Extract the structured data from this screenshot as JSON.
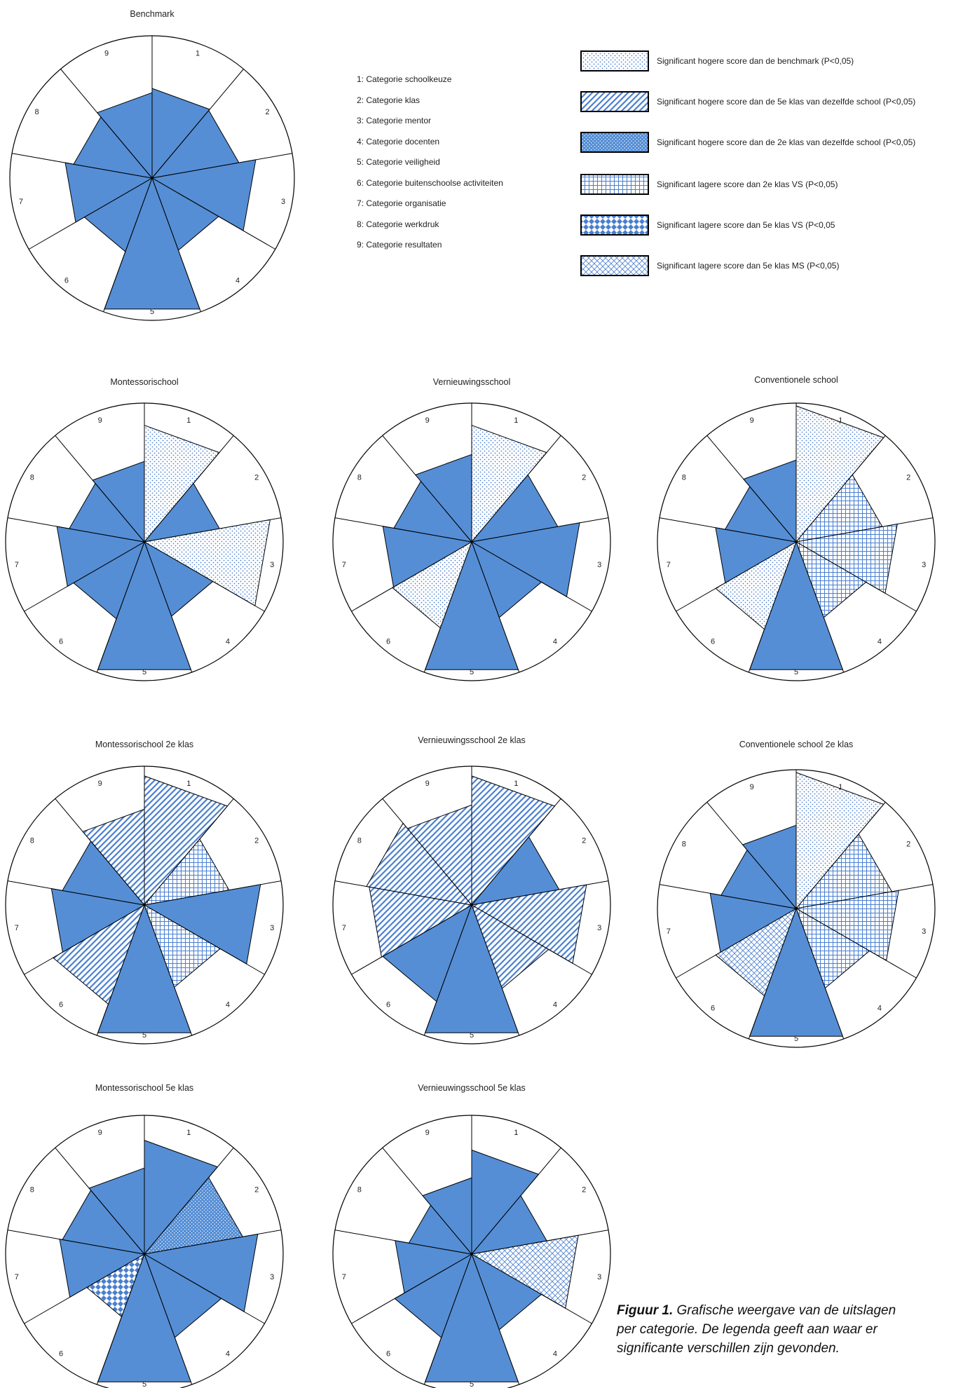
{
  "categories_legend": [
    "1: Categorie schoolkeuze",
    "2: Categorie klas",
    "3: Categorie mentor",
    "4: Categorie docenten",
    "5: Categorie veiligheid",
    "6: Categorie buitenschoolse activiteiten",
    "7: Categorie organisatie",
    "8: Categorie werkdruk",
    "9: Categorie resultaten"
  ],
  "pattern_legend": [
    {
      "pattern": "dots",
      "text": "Significant hogere score dan de benchmark (P<0,05)"
    },
    {
      "pattern": "diag",
      "text": "Significant hogere score dan de 5e klas van dezelfde school (P<0,05)"
    },
    {
      "pattern": "bigdots",
      "text": "Significant hogere score dan de 2e klas van dezelfde school (P<0,05)"
    },
    {
      "pattern": "grid",
      "text": "Significant lagere score dan 2e klas VS (P<0,05)"
    },
    {
      "pattern": "check",
      "text": "Significant lagere score dan 5e klas VS (P<0,05"
    },
    {
      "pattern": "cross",
      "text": "Significant lagere score dan 5e klas MS (P<0,05)"
    }
  ],
  "colors": {
    "fill": "#558ed5",
    "pattern_line": "#4a7fd0",
    "outline": "#000000"
  },
  "caption": {
    "label": "Figuur 1.",
    "line1": " Grafische weergave van de uitslagen",
    "line2": "per categorie. De legenda geeft aan waar er",
    "line3": "significante verschillen zijn gevonden."
  },
  "chart_data": [
    {
      "type": "radar",
      "title": "Benchmark",
      "axes": [
        "1",
        "2",
        "3",
        "4",
        "5",
        "6",
        "7",
        "8",
        "9"
      ],
      "ylim": [
        0,
        1
      ],
      "values": [
        0.63,
        0.62,
        0.74,
        0.54,
        0.98,
        0.55,
        0.62,
        0.56,
        0.6
      ],
      "patterns": [
        "solid",
        "solid",
        "solid",
        "solid",
        "solid",
        "solid",
        "solid",
        "solid",
        "solid"
      ]
    },
    {
      "type": "radar",
      "title": "Montessorischool",
      "axes": [
        "1",
        "2",
        "3",
        "4",
        "5",
        "6",
        "7",
        "8",
        "9"
      ],
      "ylim": [
        0,
        1
      ],
      "values": [
        0.84,
        0.55,
        0.92,
        0.57,
        0.98,
        0.59,
        0.64,
        0.55,
        0.58
      ],
      "patterns": [
        "dots",
        "solid",
        "dots",
        "solid",
        "solid",
        "solid",
        "solid",
        "solid",
        "solid"
      ]
    },
    {
      "type": "radar",
      "title": "Vernieuwingsschool",
      "axes": [
        "1",
        "2",
        "3",
        "4",
        "5",
        "6",
        "7",
        "8",
        "9"
      ],
      "ylim": [
        0,
        1
      ],
      "values": [
        0.84,
        0.63,
        0.79,
        0.58,
        0.98,
        0.66,
        0.65,
        0.57,
        0.63
      ],
      "patterns": [
        "dots",
        "solid",
        "solid",
        "solid",
        "solid",
        "dots",
        "solid",
        "solid",
        "solid"
      ]
    },
    {
      "type": "radar",
      "title": "Conventionele school",
      "axes": [
        "1",
        "2",
        "3",
        "4",
        "5",
        "6",
        "7",
        "8",
        "9"
      ],
      "ylim": [
        0,
        1
      ],
      "values": [
        0.98,
        0.63,
        0.74,
        0.58,
        0.98,
        0.67,
        0.59,
        0.52,
        0.59
      ],
      "patterns": [
        "dots",
        "grid",
        "grid",
        "grid",
        "solid",
        "dots",
        "solid",
        "solid",
        "solid"
      ]
    },
    {
      "type": "radar",
      "title": "Montessorischool 2e klas",
      "axes": [
        "1",
        "2",
        "3",
        "4",
        "5",
        "6",
        "7",
        "8",
        "9"
      ],
      "ylim": [
        0,
        1
      ],
      "values": [
        0.93,
        0.62,
        0.85,
        0.63,
        0.98,
        0.76,
        0.68,
        0.6,
        0.69
      ],
      "patterns": [
        "diag",
        "grid",
        "solid",
        "grid",
        "solid",
        "diag",
        "solid",
        "solid",
        "diag"
      ]
    },
    {
      "type": "radar",
      "title": "Vernieuwingsschool 2e klas",
      "axes": [
        "1",
        "2",
        "3",
        "4",
        "5",
        "6",
        "7",
        "8",
        "9"
      ],
      "ylim": [
        0,
        1
      ],
      "values": [
        0.93,
        0.64,
        0.84,
        0.64,
        0.98,
        0.74,
        0.75,
        0.77,
        0.72
      ],
      "patterns": [
        "diag",
        "solid",
        "diag",
        "diag",
        "solid",
        "solid",
        "diag",
        "diag",
        "diag"
      ]
    },
    {
      "type": "radar",
      "title": "Conventionele school 2e klas",
      "axes": [
        "1",
        "2",
        "3",
        "4",
        "5",
        "6",
        "7",
        "8",
        "9"
      ],
      "ylim": [
        0,
        1
      ],
      "values": [
        0.98,
        0.7,
        0.75,
        0.61,
        0.98,
        0.67,
        0.63,
        0.55,
        0.6
      ],
      "patterns": [
        "dots",
        "grid",
        "grid",
        "grid",
        "solid",
        "cross",
        "solid",
        "solid",
        "solid"
      ]
    },
    {
      "type": "radar",
      "title": "Montessorischool 5e klas",
      "axes": [
        "1",
        "2",
        "3",
        "4",
        "5",
        "6",
        "7",
        "8",
        "9"
      ],
      "ylim": [
        0,
        1
      ],
      "values": [
        0.82,
        0.72,
        0.83,
        0.64,
        0.98,
        0.48,
        0.62,
        0.6,
        0.62
      ],
      "patterns": [
        "solid",
        "bigdots",
        "solid",
        "solid",
        "solid",
        "check",
        "solid",
        "solid",
        "solid"
      ]
    },
    {
      "type": "radar",
      "title": "Vernieuwingsschool 5e klas",
      "axes": [
        "1",
        "2",
        "3",
        "4",
        "5",
        "6",
        "7",
        "8",
        "9"
      ],
      "ylim": [
        0,
        1
      ],
      "values": [
        0.75,
        0.55,
        0.78,
        0.58,
        0.98,
        0.64,
        0.56,
        0.46,
        0.55
      ],
      "patterns": [
        "solid",
        "solid",
        "cross",
        "solid",
        "solid",
        "solid",
        "solid",
        "solid",
        "solid"
      ]
    }
  ]
}
